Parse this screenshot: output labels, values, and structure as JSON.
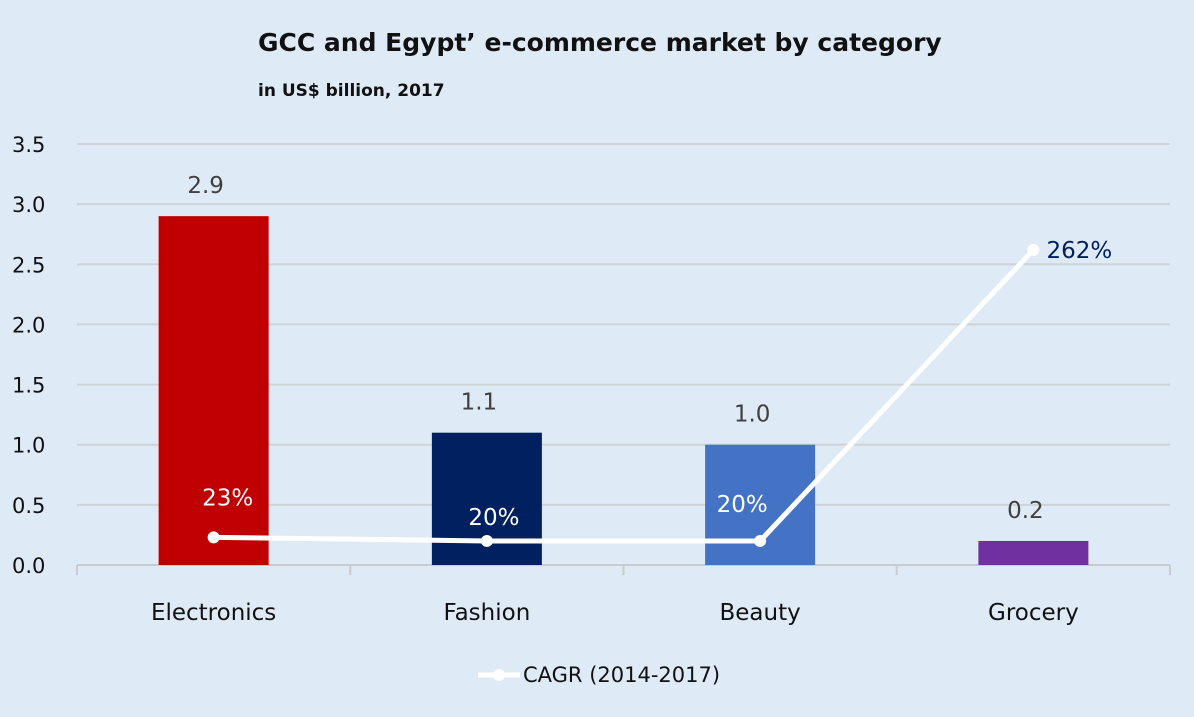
{
  "chart_data": {
    "type": "bar",
    "title": "GCC and Egypt’ e-commerce market by category",
    "subtitle": "in US$ billion, 2017",
    "categories": [
      "Electronics",
      "Fashion",
      "Beauty",
      "Grocery"
    ],
    "values": [
      2.9,
      1.1,
      1.0,
      0.2
    ],
    "value_labels": [
      "2.9",
      "1.1",
      "1.0",
      "0.2"
    ],
    "bar_colors": [
      "#C00000",
      "#002060",
      "#4472C4",
      "#7030A0"
    ],
    "ylim": [
      0,
      3.5
    ],
    "yticks": [
      "0.0",
      "0.5",
      "1.0",
      "1.5",
      "2.0",
      "2.5",
      "3.0",
      "3.5"
    ],
    "grid": true,
    "line_series": {
      "name": "CAGR (2014-2017)",
      "values": [
        23,
        20,
        20,
        262
      ],
      "labels": [
        "23%",
        "20%",
        "20%",
        "262%"
      ],
      "color": "#FFFFFF"
    },
    "legend_placement": "bottom"
  }
}
